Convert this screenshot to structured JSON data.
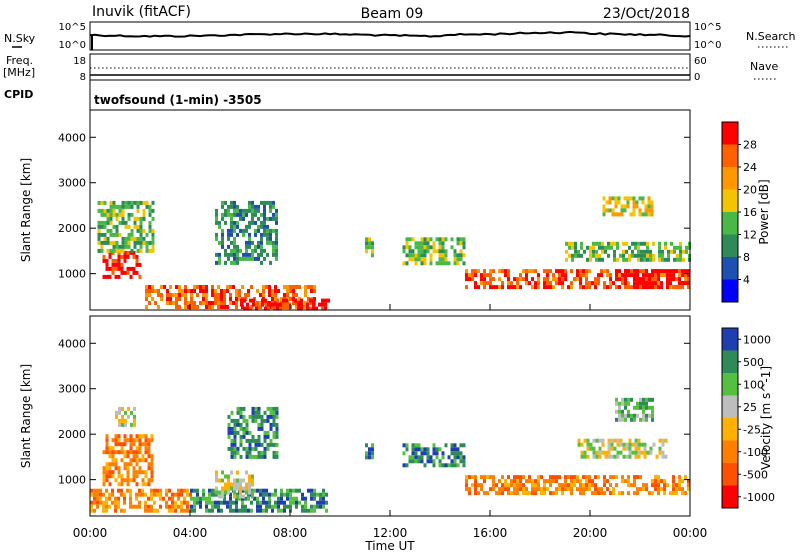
{
  "header": {
    "station": "Inuvik (fitACF)",
    "beam": "Beam 09",
    "date": "23/Oct/2018"
  },
  "top_panels": {
    "sky_label": "N.Sky",
    "search_label": "N.Search",
    "sky_ticks": [
      "10^5",
      "10^0"
    ],
    "search_ticks": [
      "10^5",
      "10^0"
    ],
    "freq_label": "Freq.",
    "freq_unit": "[MHz]",
    "freq_ticks": [
      "18",
      "8"
    ],
    "nave_label": "Nave",
    "nave_ticks": [
      "60",
      "0"
    ],
    "cpid_label": "CPID",
    "program": "twofsound (1-min) -3505"
  },
  "colors": {
    "power": [
      "#0000ff",
      "#1f4fb0",
      "#2e8b57",
      "#49b847",
      "#f5c400",
      "#ff9800",
      "#ff6000",
      "#ff0000"
    ],
    "velocity": [
      "#1f3fb0",
      "#2e8b57",
      "#55c040",
      "#bdbdbd",
      "#ffb000",
      "#ff8000",
      "#ff5000",
      "#ff0000"
    ]
  },
  "chart_data": [
    {
      "type": "heatmap",
      "name": "power-panel",
      "xlabel": "",
      "ylabel": "Slant Range [km]",
      "yticks": [
        "1000",
        "2000",
        "3000",
        "4000"
      ],
      "ylim": [
        200,
        4600
      ],
      "xlim": [
        0,
        24
      ],
      "colorbar": {
        "label": "Power [dB]",
        "ticks": [
          "4",
          "8",
          "12",
          "16",
          "20",
          "24",
          "28"
        ]
      },
      "features": [
        {
          "t0": 0.5,
          "t1": 2.0,
          "r0": 900,
          "r1": 1500,
          "level": 7
        },
        {
          "t0": 2.2,
          "t1": 9.0,
          "r0": 300,
          "r1": 750,
          "level": 6
        },
        {
          "t0": 6.0,
          "t1": 9.5,
          "r0": 250,
          "r1": 450,
          "level": 7
        },
        {
          "t0": 0.3,
          "t1": 2.5,
          "r0": 1500,
          "r1": 2600,
          "level": 3
        },
        {
          "t0": 5.0,
          "t1": 7.5,
          "r0": 1200,
          "r1": 2600,
          "level": 2
        },
        {
          "t0": 11.0,
          "t1": 11.3,
          "r0": 1400,
          "r1": 1800,
          "level": 3
        },
        {
          "t0": 12.5,
          "t1": 15.0,
          "r0": 1200,
          "r1": 1800,
          "level": 3
        },
        {
          "t0": 15.0,
          "t1": 24.0,
          "r0": 700,
          "r1": 1100,
          "level": 6
        },
        {
          "t0": 21.0,
          "t1": 24.0,
          "r0": 700,
          "r1": 1100,
          "level": 7
        },
        {
          "t0": 19.0,
          "t1": 24.0,
          "r0": 1300,
          "r1": 1700,
          "level": 3
        },
        {
          "t0": 20.5,
          "t1": 22.5,
          "r0": 2300,
          "r1": 2700,
          "level": 4
        }
      ]
    },
    {
      "type": "heatmap",
      "name": "velocity-panel",
      "xlabel": "Time UT",
      "ylabel": "Slant Range [km]",
      "xticks": [
        "00:00",
        "04:00",
        "08:00",
        "12:00",
        "16:00",
        "20:00",
        "00:00"
      ],
      "yticks": [
        "1000",
        "2000",
        "3000",
        "4000"
      ],
      "ylim": [
        200,
        4600
      ],
      "xlim": [
        0,
        24
      ],
      "colorbar": {
        "label": "Velocity [m s^-1]",
        "ticks": [
          "1000",
          "500",
          "100",
          "25",
          "-25",
          "-100",
          "-500",
          "-1000"
        ]
      },
      "features": [
        {
          "t0": 0.5,
          "t1": 2.5,
          "r0": 900,
          "r1": 2000,
          "level": 5
        },
        {
          "t0": 0.0,
          "t1": 4.0,
          "r0": 300,
          "r1": 800,
          "level": 5
        },
        {
          "t0": 4.0,
          "t1": 9.5,
          "r0": 300,
          "r1": 800,
          "level": 1
        },
        {
          "t0": 5.0,
          "t1": 6.5,
          "r0": 600,
          "r1": 1200,
          "level": 3
        },
        {
          "t0": 5.5,
          "t1": 7.5,
          "r0": 1500,
          "r1": 2600,
          "level": 1
        },
        {
          "t0": 11.0,
          "t1": 11.3,
          "r0": 1400,
          "r1": 1800,
          "level": 1
        },
        {
          "t0": 12.5,
          "t1": 15.0,
          "r0": 1300,
          "r1": 1800,
          "level": 1
        },
        {
          "t0": 15.0,
          "t1": 24.0,
          "r0": 700,
          "r1": 1100,
          "level": 5
        },
        {
          "t0": 19.5,
          "t1": 23.0,
          "r0": 1500,
          "r1": 1900,
          "level": 3
        },
        {
          "t0": 21.0,
          "t1": 22.5,
          "r0": 2300,
          "r1": 2800,
          "level": 2
        },
        {
          "t0": 1.0,
          "t1": 1.8,
          "r0": 2200,
          "r1": 2600,
          "level": 3
        }
      ]
    }
  ]
}
